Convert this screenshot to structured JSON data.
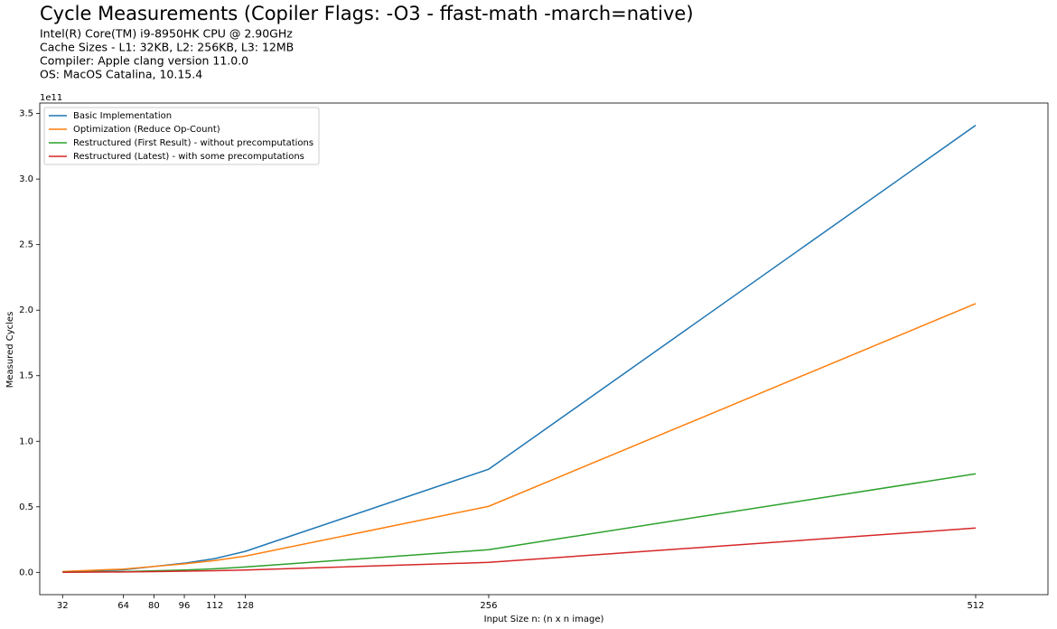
{
  "chart_data": {
    "type": "line",
    "title": "Cycle Measurements (Copiler Flags: -O3 - ffast-math -march=native)",
    "subtitle": [
      "Intel(R) Core(TM) i9-8950HK CPU @ 2.90GHz",
      "Cache Sizes - L1: 32KB, L2: 256KB, L3: 12MB",
      "Compiler: Apple clang version 11.0.0",
      "OS: MacOS Catalina, 10.15.4"
    ],
    "x_label": "Input Size n: (n x n image)",
    "y_label": "Measured Cycles",
    "y_offset_label": "1e11",
    "x": [
      32,
      64,
      80,
      96,
      112,
      128,
      256,
      512
    ],
    "series": [
      {
        "name": "Basic Implementation",
        "color": "#1f77b4",
        "values": [
          0.003,
          0.02,
          0.045,
          0.07,
          0.105,
          0.16,
          0.787,
          3.41
        ]
      },
      {
        "name": "Optimization (Reduce Op-Count)",
        "color": "#ff7f0e",
        "values": [
          0.007,
          0.025,
          0.045,
          0.065,
          0.09,
          0.124,
          0.504,
          2.05
        ]
      },
      {
        "name": "Restructured (First Result) - without precomputations",
        "color": "#2ca02c",
        "values": [
          0.002,
          0.006,
          0.012,
          0.018,
          0.027,
          0.041,
          0.173,
          0.752
        ]
      },
      {
        "name": "Restructured (Latest) - with some precomputations",
        "color": "#d62728",
        "values": [
          0.001,
          0.003,
          0.006,
          0.009,
          0.013,
          0.018,
          0.076,
          0.338
        ]
      }
    ],
    "xlim": [
      20,
      550
    ],
    "xticks": [
      32,
      64,
      80,
      96,
      112,
      128,
      256,
      512
    ],
    "ylim": [
      -0.17,
      3.58
    ],
    "yticks": [
      {
        "value": 0,
        "label": "0.0"
      },
      0.5,
      {
        "value": 1,
        "label": "1.0"
      },
      1.5,
      {
        "value": 2,
        "label": "2.0"
      },
      2.5,
      {
        "value": 3,
        "label": "3.0"
      },
      3.5
    ],
    "legend": "upper left",
    "grid": false
  }
}
